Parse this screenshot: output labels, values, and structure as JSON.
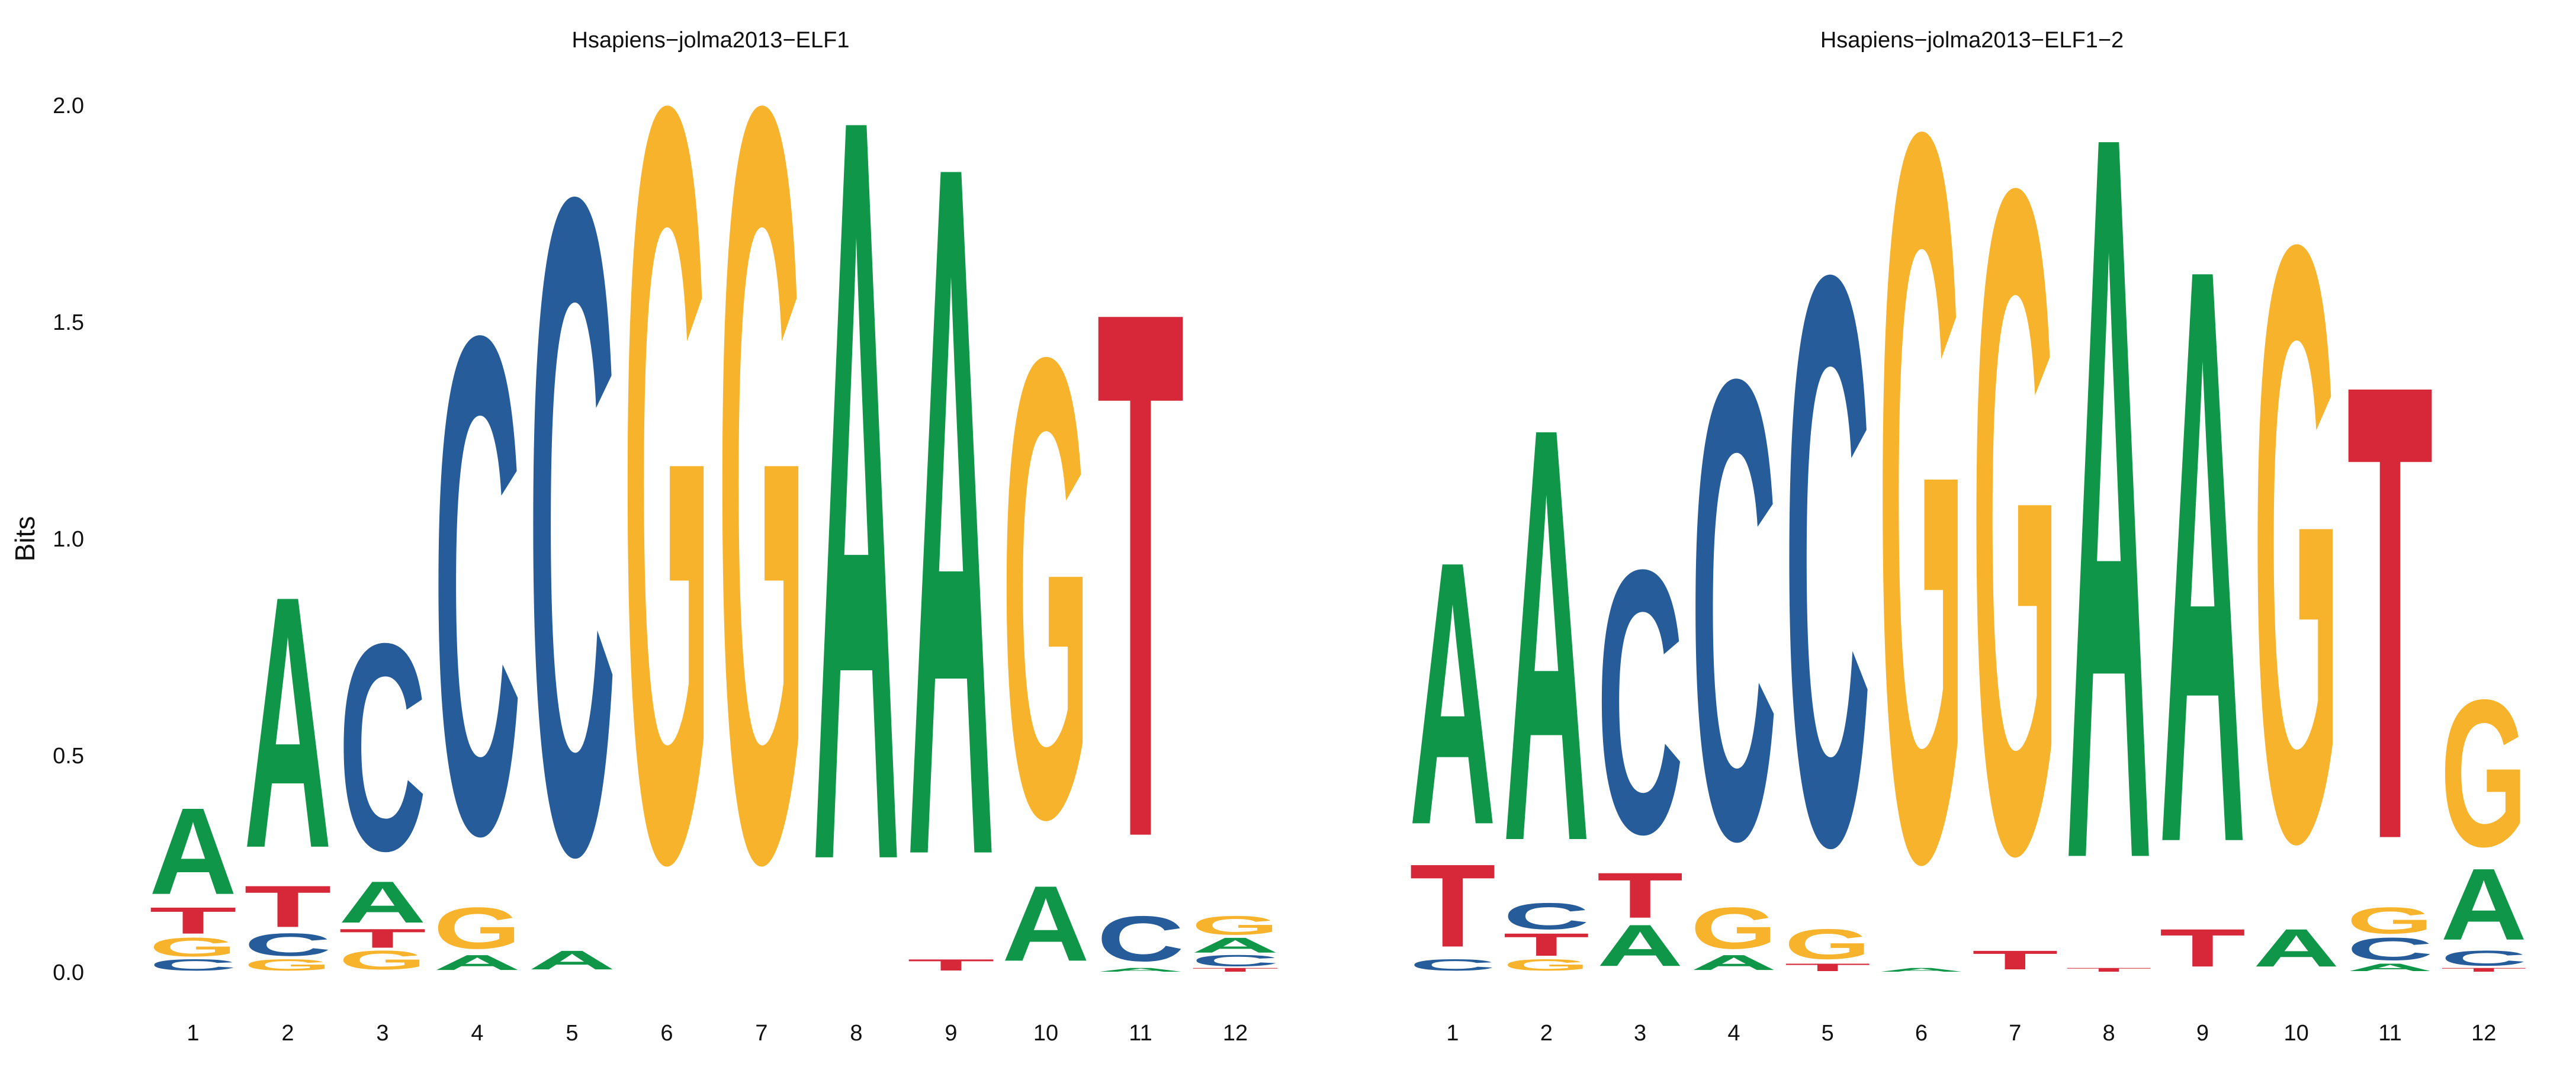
{
  "colors": {
    "A": "#109648",
    "C": "#255C99",
    "G": "#F7B32B",
    "T": "#D62839"
  },
  "chart_data": [
    {
      "type": "sequence-logo",
      "title": "Hsapiens−jolma2013−ELF1",
      "ylabel": "Bits",
      "ylim": [
        0,
        2
      ],
      "yticks": [
        "0.0",
        "0.5",
        "1.0",
        "1.5",
        "2.0"
      ],
      "positions": [
        "1",
        "2",
        "3",
        "4",
        "5",
        "6",
        "7",
        "8",
        "9",
        "10",
        "11",
        "12"
      ],
      "stacks": [
        [
          {
            "base": "C",
            "bits": 0.03
          },
          {
            "base": "G",
            "bits": 0.05
          },
          {
            "base": "T",
            "bits": 0.07
          },
          {
            "base": "A",
            "bits": 0.23
          }
        ],
        [
          {
            "base": "G",
            "bits": 0.03
          },
          {
            "base": "C",
            "bits": 0.06
          },
          {
            "base": "T",
            "bits": 0.11
          },
          {
            "base": "A",
            "bits": 0.67
          }
        ],
        [
          {
            "base": "G",
            "bits": 0.05
          },
          {
            "base": "T",
            "bits": 0.05
          },
          {
            "base": "A",
            "bits": 0.11
          },
          {
            "base": "C",
            "bits": 0.55
          }
        ],
        [
          {
            "base": "A",
            "bits": 0.04
          },
          {
            "base": "G",
            "bits": 0.11
          },
          {
            "base": "C",
            "bits": 1.32
          }
        ],
        [
          {
            "base": "A",
            "bits": 0.05
          },
          {
            "base": "C",
            "bits": 1.74
          }
        ],
        [
          {
            "base": "G",
            "bits": 2.0
          }
        ],
        [
          {
            "base": "G",
            "bits": 2.0
          }
        ],
        [
          {
            "base": "A",
            "bits": 1.98
          }
        ],
        [
          {
            "base": "T",
            "bits": 0.03
          },
          {
            "base": "A",
            "bits": 1.84
          }
        ],
        [
          {
            "base": "A",
            "bits": 0.2
          },
          {
            "base": "G",
            "bits": 1.22
          }
        ],
        [
          {
            "base": "A",
            "bits": 0.01
          },
          {
            "base": "C",
            "bits": 0.12
          },
          {
            "base": "T",
            "bits": 1.4
          }
        ],
        [
          {
            "base": "T",
            "bits": 0.01
          },
          {
            "base": "C",
            "bits": 0.03
          },
          {
            "base": "A",
            "bits": 0.04
          },
          {
            "base": "G",
            "bits": 0.05
          }
        ]
      ]
    },
    {
      "type": "sequence-logo",
      "title": "Hsapiens−jolma2013−ELF1−2",
      "ylabel": "",
      "ylim": [
        0,
        2
      ],
      "yticks": [],
      "positions": [
        "1",
        "2",
        "3",
        "4",
        "5",
        "6",
        "7",
        "8",
        "9",
        "10",
        "11",
        "12"
      ],
      "stacks": [
        [
          {
            "base": "C",
            "bits": 0.03
          },
          {
            "base": "T",
            "bits": 0.22
          },
          {
            "base": "A",
            "bits": 0.7
          }
        ],
        [
          {
            "base": "G",
            "bits": 0.03
          },
          {
            "base": "T",
            "bits": 0.06
          },
          {
            "base": "C",
            "bits": 0.07
          },
          {
            "base": "A",
            "bits": 1.1
          }
        ],
        [
          {
            "base": "A",
            "bits": 0.11
          },
          {
            "base": "T",
            "bits": 0.12
          },
          {
            "base": "C",
            "bits": 0.7
          }
        ],
        [
          {
            "base": "A",
            "bits": 0.04
          },
          {
            "base": "G",
            "bits": 0.11
          },
          {
            "base": "C",
            "bits": 1.22
          }
        ],
        [
          {
            "base": "T",
            "bits": 0.02
          },
          {
            "base": "G",
            "bits": 0.08
          },
          {
            "base": "C",
            "bits": 1.51
          }
        ],
        [
          {
            "base": "A",
            "bits": 0.01
          },
          {
            "base": "G",
            "bits": 1.93
          }
        ],
        [
          {
            "base": "T",
            "bits": 0.05
          },
          {
            "base": "G",
            "bits": 1.76
          }
        ],
        [
          {
            "base": "T",
            "bits": 0.01
          },
          {
            "base": "A",
            "bits": 1.93
          }
        ],
        [
          {
            "base": "T",
            "bits": 0.1
          },
          {
            "base": "A",
            "bits": 1.53
          }
        ],
        [
          {
            "base": "A",
            "bits": 0.1
          },
          {
            "base": "G",
            "bits": 1.58
          }
        ],
        [
          {
            "base": "A",
            "bits": 0.02
          },
          {
            "base": "C",
            "bits": 0.06
          },
          {
            "base": "G",
            "bits": 0.07
          },
          {
            "base": "T",
            "bits": 1.21
          }
        ],
        [
          {
            "base": "T",
            "bits": 0.01
          },
          {
            "base": "C",
            "bits": 0.04
          },
          {
            "base": "A",
            "bits": 0.19
          },
          {
            "base": "G",
            "bits": 0.39
          }
        ]
      ]
    }
  ]
}
